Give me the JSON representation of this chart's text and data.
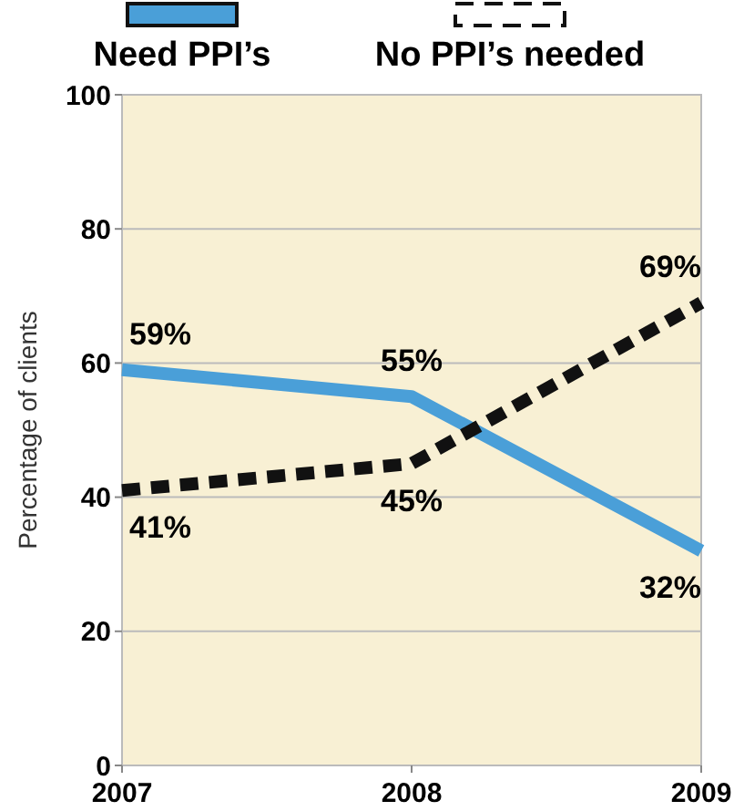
{
  "chart_data": {
    "type": "line",
    "ylabel": "Percentage of clients",
    "x": [
      2007,
      2008,
      2009
    ],
    "xlim": [
      2007,
      2009
    ],
    "xticks": [
      2007,
      2008,
      2009
    ],
    "ylim": [
      0,
      100
    ],
    "yticks": [
      0,
      20,
      40,
      60,
      80,
      100
    ],
    "grid": "y",
    "legend": "top",
    "series": [
      {
        "name": "Need PPI’s",
        "color": "#4a9fd8",
        "values": [
          59,
          55,
          32
        ],
        "value_labels": [
          "59%",
          "55%",
          "32%"
        ],
        "line_style": "solid"
      },
      {
        "name": "No PPI’s needed",
        "color": "#111111",
        "values": [
          41,
          45,
          69
        ],
        "value_labels": [
          "41%",
          "45%",
          "69%"
        ],
        "line_style": "dashed"
      }
    ]
  }
}
